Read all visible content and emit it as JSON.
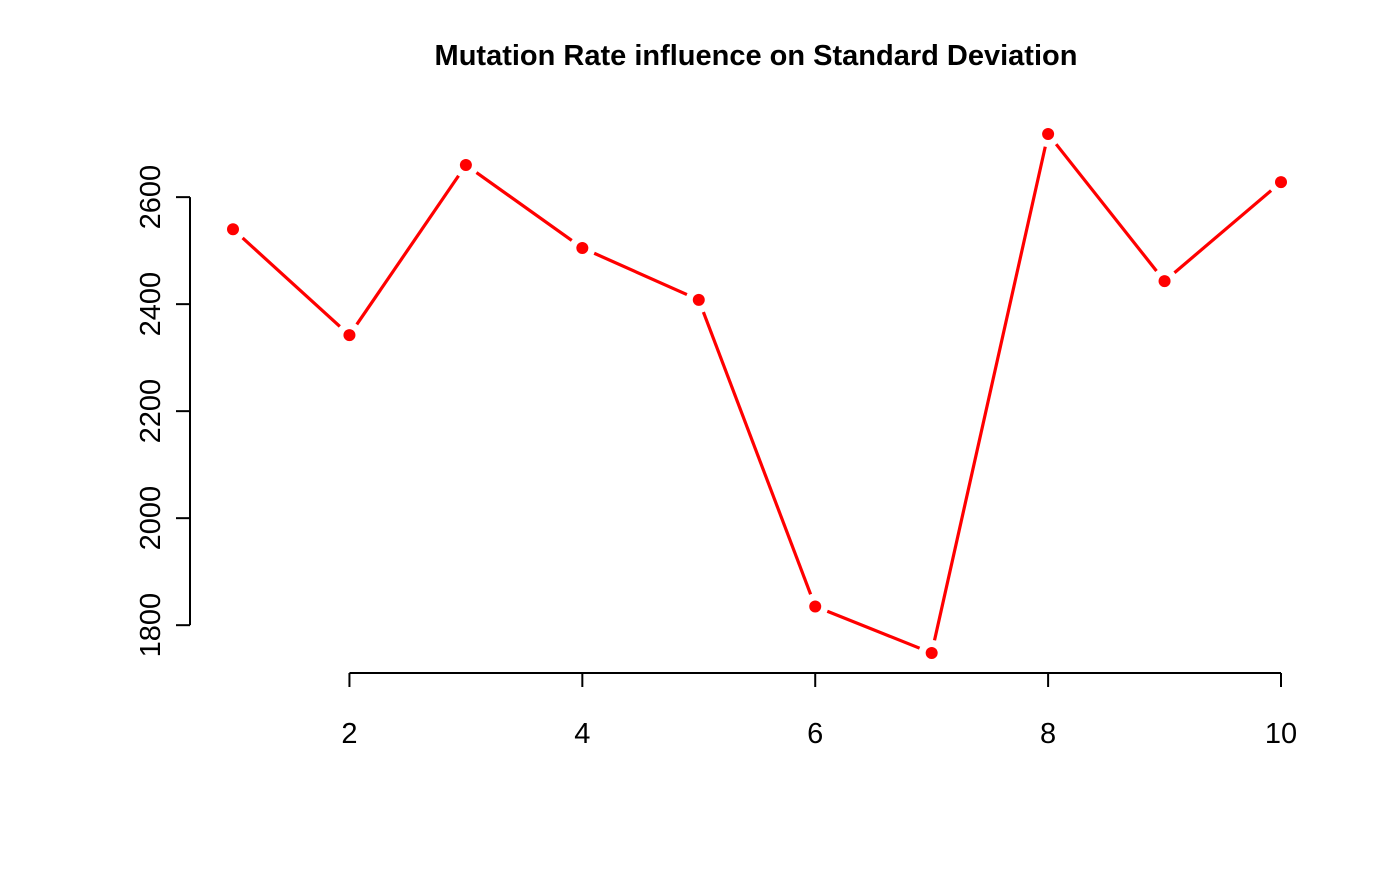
{
  "chart_data": {
    "type": "line",
    "title": "Mutation Rate influence on Standard Deviation",
    "xlabel": "",
    "ylabel": "",
    "x": [
      1,
      2,
      3,
      4,
      5,
      6,
      7,
      8,
      9,
      10
    ],
    "series": [
      {
        "values": [
          2540,
          2342,
          2660,
          2505,
          2408,
          1835,
          1748,
          2718,
          2443,
          2628
        ],
        "color": "#ff0000"
      }
    ],
    "x_ticks": [
      2,
      4,
      6,
      8,
      10
    ],
    "x_tick_labels": [
      "2",
      "4",
      "6",
      "8",
      "10"
    ],
    "y_ticks": [
      1800,
      2000,
      2200,
      2400,
      2600
    ],
    "y_tick_labels": [
      "1800",
      "2000",
      "2200",
      "2400",
      "2600"
    ],
    "xlim": [
      1,
      10
    ],
    "ylim": [
      1748,
      2718
    ],
    "grid": false,
    "legend": "none",
    "style": {
      "line_color": "#ff0000",
      "point_color": "#ff0000",
      "axis_color": "#000000",
      "background": "#ffffff"
    }
  }
}
